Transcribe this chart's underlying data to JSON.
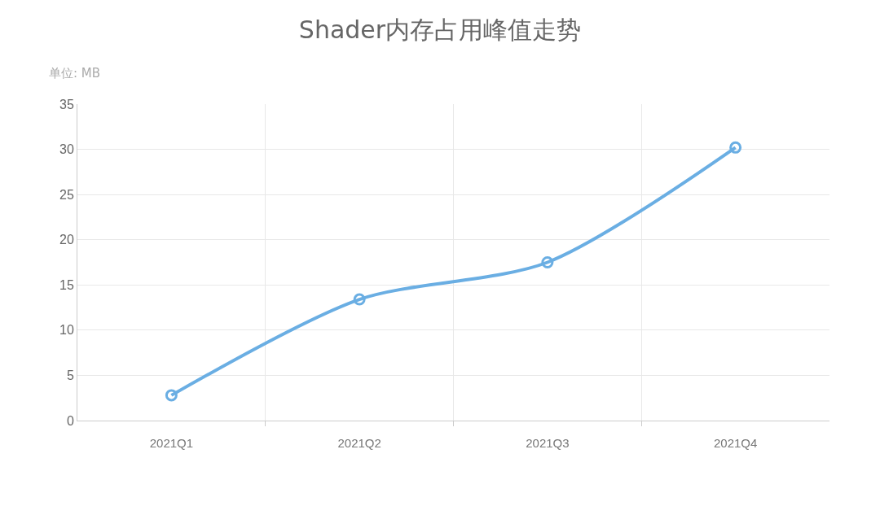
{
  "chart_data": {
    "type": "line",
    "title": "Shader内存占用峰值走势",
    "ylabel": "单位: MB",
    "categories": [
      "2021Q1",
      "2021Q2",
      "2021Q3",
      "2021Q4"
    ],
    "series": [
      {
        "color": "#6aaee3",
        "values": [
          2.8,
          13.4,
          17.5,
          30.2
        ]
      }
    ],
    "ylim": [
      0,
      35
    ],
    "yticks": [
      0,
      5,
      10,
      15,
      20,
      25,
      30,
      35
    ],
    "grid": true,
    "marker": "circle",
    "line_style": "solid"
  }
}
